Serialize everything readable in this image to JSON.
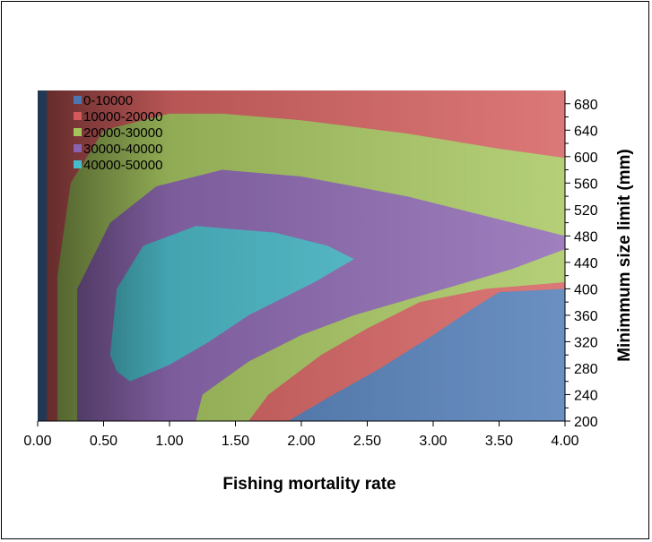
{
  "chart_data": {
    "type": "contour",
    "title": "",
    "xlabel": "Fishing mortality rate",
    "ylabel": "Minimmum size limit (mm)",
    "xlim": [
      0,
      4
    ],
    "ylim": [
      200,
      700
    ],
    "x_ticks": [
      "0.00",
      "0.50",
      "1.00",
      "1.50",
      "2.00",
      "2.50",
      "3.00",
      "3.50",
      "4.00"
    ],
    "y_ticks": [
      "200",
      "240",
      "280",
      "320",
      "360",
      "400",
      "440",
      "480",
      "520",
      "560",
      "600",
      "640",
      "680"
    ],
    "legend_position": "top-left",
    "legend": [
      {
        "label": "0-10000",
        "color": "#4a77b4"
      },
      {
        "label": "10000-20000",
        "color": "#d35a5a"
      },
      {
        "label": "20000-30000",
        "color": "#a4c55a"
      },
      {
        "label": "30000-40000",
        "color": "#8a63b0"
      },
      {
        "label": "40000-50000",
        "color": "#45bccb"
      }
    ],
    "bands": [
      {
        "range": "0-10000",
        "color": "#4a77b4",
        "left_edge_F": [
          0.07,
          0.07
        ],
        "right_region": [
          [
            1.9,
            200
          ],
          [
            2.2,
            235
          ],
          [
            2.6,
            280
          ],
          [
            3.0,
            330
          ],
          [
            3.3,
            370
          ],
          [
            3.5,
            395
          ],
          [
            4.0,
            400
          ],
          [
            4.0,
            200
          ]
        ]
      },
      {
        "range": "10000-20000",
        "color": "#d35a5a",
        "left_boundary": [
          [
            0.07,
            200
          ],
          [
            0.07,
            700
          ]
        ],
        "right_boundary": [
          [
            1.6,
            200
          ],
          [
            1.75,
            240
          ],
          [
            2.15,
            300
          ],
          [
            2.5,
            340
          ],
          [
            2.9,
            380
          ],
          [
            3.4,
            400
          ],
          [
            4.0,
            410
          ]
        ]
      },
      {
        "range": "20000-30000",
        "color": "#a4c55a",
        "boundary": [
          [
            0.15,
            200
          ],
          [
            0.15,
            420
          ],
          [
            0.25,
            560
          ],
          [
            0.5,
            640
          ],
          [
            1.0,
            665
          ],
          [
            1.4,
            665
          ],
          [
            2.0,
            655
          ],
          [
            2.8,
            635
          ],
          [
            3.5,
            612
          ],
          [
            4.0,
            598
          ]
        ]
      },
      {
        "range": "30000-40000",
        "color": "#8a63b0",
        "boundary": [
          [
            0.3,
            200
          ],
          [
            0.3,
            400
          ],
          [
            0.55,
            500
          ],
          [
            0.9,
            555
          ],
          [
            1.4,
            580
          ],
          [
            2.0,
            570
          ],
          [
            2.8,
            540
          ],
          [
            3.5,
            505
          ],
          [
            4.0,
            480
          ]
        ]
      },
      {
        "range": "40000-50000",
        "color": "#45bccb",
        "boundary": [
          [
            0.55,
            300
          ],
          [
            0.6,
            400
          ],
          [
            0.8,
            465
          ],
          [
            1.2,
            495
          ],
          [
            1.8,
            485
          ],
          [
            2.2,
            465
          ],
          [
            2.4,
            445
          ],
          [
            2.1,
            410
          ],
          [
            1.6,
            360
          ],
          [
            1.3,
            320
          ],
          [
            1.0,
            285
          ],
          [
            0.7,
            260
          ],
          [
            0.6,
            275
          ]
        ]
      }
    ]
  }
}
